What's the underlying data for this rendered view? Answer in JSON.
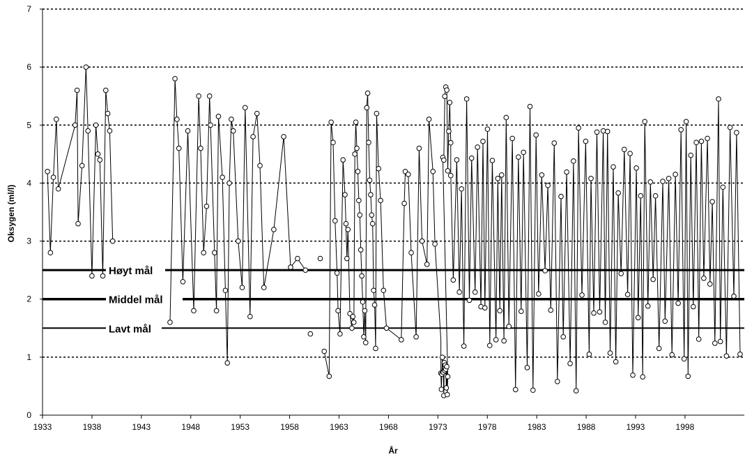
{
  "chart_data": {
    "type": "line",
    "title": "",
    "xlabel": "År",
    "ylabel": "Oksygen (ml/l)",
    "xlim": [
      1933,
      2004
    ],
    "ylim": [
      0,
      7
    ],
    "x_ticks": [
      1933,
      1938,
      1943,
      1948,
      1953,
      1958,
      1963,
      1968,
      1973,
      1978,
      1983,
      1988,
      1993,
      1998
    ],
    "y_ticks": [
      0,
      1,
      2,
      3,
      4,
      5,
      6,
      7
    ],
    "grid": "horizontal dotted at 1, 3, 4, 5, 6, 7",
    "reference_lines": [
      {
        "label": "Høyt mål",
        "value": 2.5
      },
      {
        "label": "Middel mål",
        "value": 2.0
      },
      {
        "label": "Lavt mål",
        "value": 1.5
      }
    ],
    "series": [
      {
        "marker": "open circle",
        "color": "#000000",
        "segments": [
          [
            [
              1933.5,
              4.2
            ],
            [
              1933.8,
              2.8
            ],
            [
              1934.1,
              4.1
            ],
            [
              1934.4,
              5.1
            ],
            [
              1934.6,
              3.9
            ],
            [
              1936.3,
              5.0
            ],
            [
              1936.5,
              5.6
            ],
            [
              1936.6,
              3.3
            ],
            [
              1937.0,
              4.3
            ],
            [
              1937.4,
              6.0
            ],
            [
              1937.6,
              4.9
            ],
            [
              1938.0,
              2.4
            ],
            [
              1938.4,
              5.0
            ],
            [
              1938.6,
              4.5
            ],
            [
              1938.8,
              4.4
            ],
            [
              1939.1,
              2.4
            ],
            [
              1939.4,
              5.6
            ],
            [
              1939.6,
              5.2
            ],
            [
              1939.8,
              4.9
            ],
            [
              1940.1,
              3.0
            ]
          ],
          [
            [
              1945.9,
              1.6
            ],
            [
              1946.4,
              5.8
            ],
            [
              1946.6,
              5.1
            ],
            [
              1946.8,
              4.6
            ],
            [
              1947.2,
              2.3
            ],
            [
              1947.7,
              4.9
            ],
            [
              1948.3,
              1.8
            ],
            [
              1948.8,
              5.5
            ],
            [
              1949.0,
              4.6
            ],
            [
              1949.3,
              2.8
            ],
            [
              1949.6,
              3.6
            ],
            [
              1949.9,
              5.5
            ],
            [
              1950.0,
              5.0
            ],
            [
              1950.4,
              2.8
            ],
            [
              1950.6,
              1.8
            ],
            [
              1950.8,
              5.15
            ],
            [
              1951.2,
              4.1
            ],
            [
              1951.5,
              2.15
            ],
            [
              1951.7,
              0.9
            ],
            [
              1951.9,
              4.0
            ],
            [
              1952.1,
              5.1
            ],
            [
              1952.3,
              4.9
            ],
            [
              1952.8,
              3.0
            ],
            [
              1953.2,
              2.2
            ],
            [
              1953.5,
              5.3
            ],
            [
              1954.0,
              1.7
            ],
            [
              1954.3,
              4.8
            ],
            [
              1954.7,
              5.2
            ],
            [
              1955.0,
              4.3
            ],
            [
              1955.4,
              2.2
            ],
            [
              1956.4,
              3.2
            ],
            [
              1957.4,
              4.8
            ],
            [
              1958.1,
              2.55
            ],
            [
              1958.8,
              2.7
            ],
            [
              1959.6,
              2.5
            ]
          ],
          [
            [
              1961.5,
              1.1
            ],
            [
              1962.0,
              0.67
            ],
            [
              1962.2,
              5.05
            ],
            [
              1962.4,
              4.7
            ],
            [
              1962.6,
              3.35
            ],
            [
              1962.8,
              2.45
            ],
            [
              1962.9,
              1.8
            ],
            [
              1963.1,
              1.4
            ],
            [
              1963.4,
              4.4
            ],
            [
              1963.6,
              3.8
            ],
            [
              1963.7,
              3.3
            ],
            [
              1963.8,
              2.7
            ],
            [
              1963.9,
              3.2
            ],
            [
              1964.1,
              1.75
            ],
            [
              1964.3,
              1.5
            ],
            [
              1964.4,
              1.7
            ],
            [
              1964.5,
              1.6
            ],
            [
              1964.6,
              4.5
            ],
            [
              1964.7,
              5.05
            ],
            [
              1964.8,
              4.6
            ],
            [
              1964.9,
              4.2
            ],
            [
              1965.0,
              3.7
            ],
            [
              1965.1,
              3.45
            ],
            [
              1965.2,
              2.85
            ],
            [
              1965.3,
              2.4
            ],
            [
              1965.4,
              1.95
            ],
            [
              1965.5,
              1.35
            ],
            [
              1965.6,
              1.8
            ],
            [
              1965.7,
              1.25
            ],
            [
              1965.8,
              5.3
            ],
            [
              1965.9,
              5.55
            ],
            [
              1966.0,
              4.7
            ],
            [
              1966.1,
              4.05
            ],
            [
              1966.2,
              3.8
            ],
            [
              1966.3,
              3.45
            ],
            [
              1966.4,
              3.3
            ],
            [
              1966.5,
              2.15
            ],
            [
              1966.6,
              1.9
            ],
            [
              1966.7,
              1.15
            ],
            [
              1966.8,
              5.2
            ],
            [
              1967.0,
              4.25
            ],
            [
              1967.2,
              3.7
            ],
            [
              1967.5,
              2.15
            ],
            [
              1967.8,
              1.5
            ],
            [
              1969.3,
              1.3
            ],
            [
              1969.6,
              3.65
            ],
            [
              1969.7,
              4.2
            ],
            [
              1970.0,
              4.15
            ],
            [
              1970.3,
              2.8
            ],
            [
              1970.8,
              1.35
            ],
            [
              1971.1,
              4.6
            ],
            [
              1971.4,
              3.0
            ],
            [
              1971.9,
              2.6
            ],
            [
              1972.1,
              5.1
            ],
            [
              1972.5,
              4.2
            ],
            [
              1972.7,
              2.95
            ]
          ]
        ]
      }
    ],
    "isolated_points": [
      [
        1961.1,
        2.7
      ],
      [
        1960.1,
        1.4
      ]
    ]
  }
}
